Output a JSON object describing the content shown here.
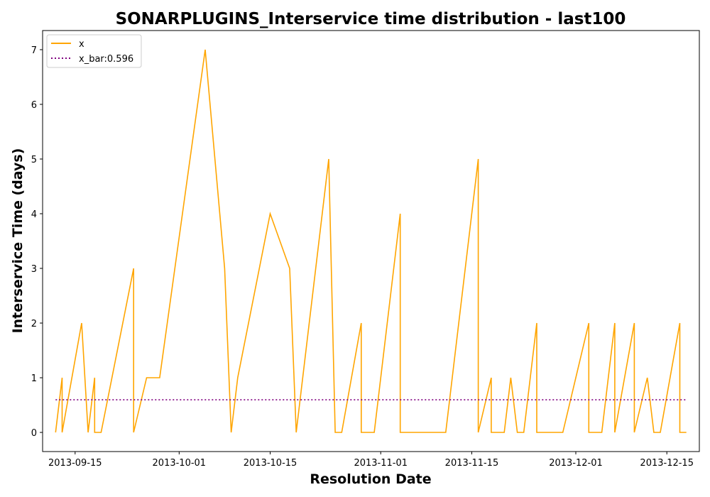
{
  "chart_data": {
    "type": "line",
    "title": "SONARPLUGINS_Interservice time distribution - last100",
    "xlabel": "Resolution Date",
    "ylabel": "Interservice Time (days)",
    "x_ticks": [
      "2013-09-15",
      "2013-10-01",
      "2013-10-15",
      "2013-11-01",
      "2013-11-15",
      "2013-12-01",
      "2013-12-15"
    ],
    "y_ticks": [
      "0",
      "1",
      "2",
      "3",
      "4",
      "5",
      "6",
      "7"
    ],
    "xlim": [
      "2013-09-10",
      "2013-12-20"
    ],
    "ylim": [
      -0.35,
      7.35
    ],
    "grid": false,
    "legend_position": "top-left",
    "series": [
      {
        "name": "x",
        "color": "#FFA500",
        "style": "solid",
        "x": [
          "2013-09-12",
          "2013-09-13",
          "2013-09-13",
          "2013-09-16",
          "2013-09-17",
          "2013-09-18",
          "2013-09-18",
          "2013-09-19",
          "2013-09-24",
          "2013-09-24",
          "2013-09-26",
          "2013-09-28",
          "2013-10-05",
          "2013-10-08",
          "2013-10-09",
          "2013-10-10",
          "2013-10-15",
          "2013-10-18",
          "2013-10-19",
          "2013-10-24",
          "2013-10-25",
          "2013-10-26",
          "2013-10-29",
          "2013-10-29",
          "2013-10-31",
          "2013-11-04",
          "2013-11-04",
          "2013-11-11",
          "2013-11-16",
          "2013-11-16",
          "2013-11-18",
          "2013-11-18",
          "2013-11-20",
          "2013-11-21",
          "2013-11-22",
          "2013-11-23",
          "2013-11-25",
          "2013-11-25",
          "2013-11-29",
          "2013-12-03",
          "2013-12-03",
          "2013-12-05",
          "2013-12-07",
          "2013-12-07",
          "2013-12-10",
          "2013-12-10",
          "2013-12-12",
          "2013-12-13",
          "2013-12-14",
          "2013-12-17",
          "2013-12-17",
          "2013-12-18"
        ],
        "values": [
          0,
          1,
          0,
          2,
          0,
          1,
          0,
          0,
          3,
          0,
          1,
          1,
          7,
          3,
          0,
          1,
          4,
          3,
          0,
          5,
          0,
          0,
          2,
          0,
          0,
          4,
          0,
          0,
          5,
          0,
          1,
          0,
          0,
          1,
          0,
          0,
          2,
          0,
          0,
          2,
          0,
          0,
          2,
          0,
          2,
          0,
          1,
          0,
          0,
          2,
          0,
          0
        ]
      },
      {
        "name": "x_bar:0.596",
        "color": "#800080",
        "style": "dotted",
        "x": [
          "2013-09-12",
          "2013-12-18"
        ],
        "values": [
          0.596,
          0.596
        ]
      }
    ]
  }
}
